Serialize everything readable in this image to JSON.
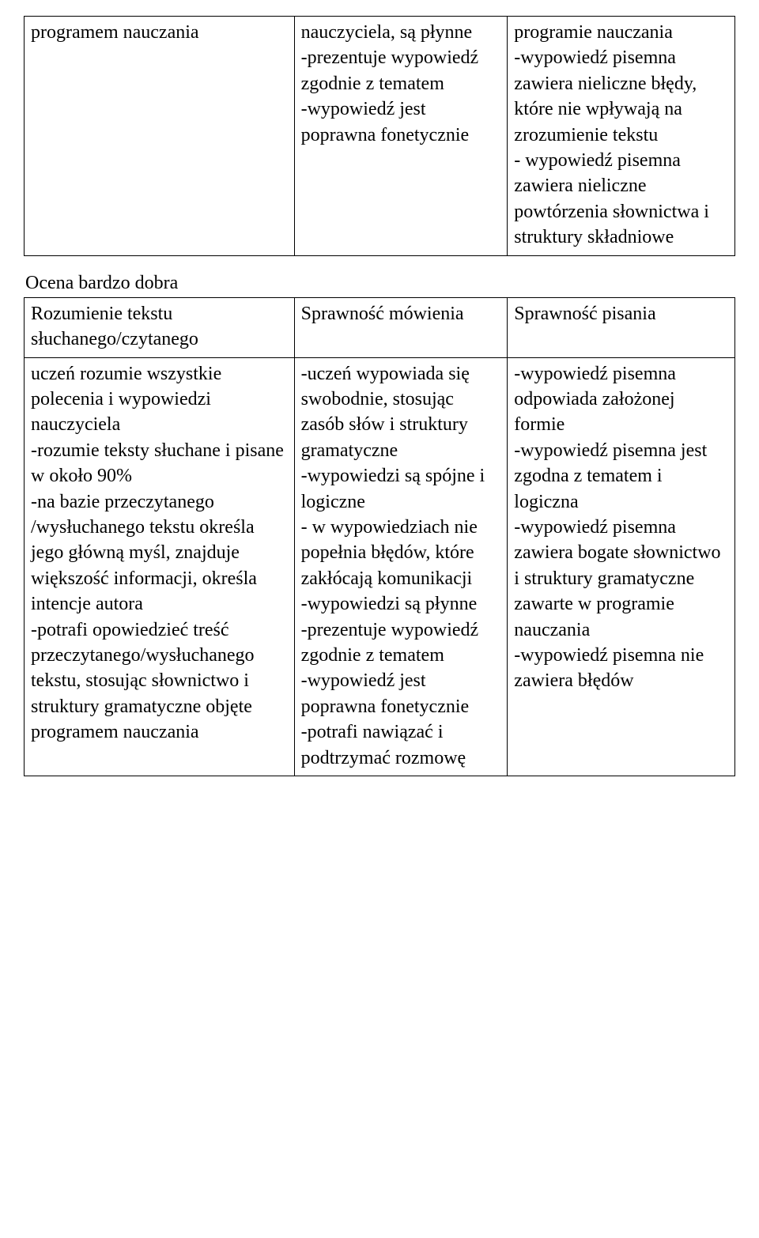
{
  "table1": {
    "row": {
      "colA": "programem nauczania",
      "colB": "nauczyciela, są płynne\n-prezentuje wypowiedź zgodnie z tematem\n-wypowiedź  jest poprawna fonetycznie",
      "colC": "programie nauczania\n-wypowiedź pisemna zawiera nieliczne błędy, które  nie wpływają na zrozumienie tekstu\n- wypowiedź pisemna zawiera nieliczne powtórzenia słownictwa  i struktury składniowe"
    }
  },
  "heading2": "Ocena bardzo dobra",
  "table2": {
    "header": {
      "colA": "Rozumienie tekstu słuchanego/czytanego",
      "colB": "Sprawność mówienia",
      "colC": "Sprawność pisania"
    },
    "body": {
      "colA": "uczeń  rozumie wszystkie polecenia i wypowiedzi nauczyciela\n-rozumie teksty słuchane i pisane w około 90%\n-na bazie przeczytanego /wysłuchanego tekstu określa jego główną myśl,  znajduje większość  informacji, określa intencje autora\n-potrafi opowiedzieć treść przeczytanego/wysłuchanego tekstu, stosując słownictwo i struktury gramatyczne objęte programem nauczania",
      "colB": "-uczeń wypowiada się swobodnie, stosując zasób słów i struktury gramatyczne\n-wypowiedzi  są spójne i logiczne\n- w wypowiedziach nie popełnia błędów, które zakłócają komunikacji\n-wypowiedzi są płynne\n-prezentuje wypowiedź zgodnie z tematem\n-wypowiedź  jest poprawna fonetycznie\n-potrafi nawiązać i podtrzymać rozmowę",
      "colC": "-wypowiedź pisemna odpowiada założonej formie\n-wypowiedź pisemna jest zgodna z tematem i logiczna\n-wypowiedź pisemna zawiera bogate słownictwo i struktury gramatyczne zawarte w programie nauczania\n-wypowiedź pisemna nie zawiera  błędów"
    }
  }
}
